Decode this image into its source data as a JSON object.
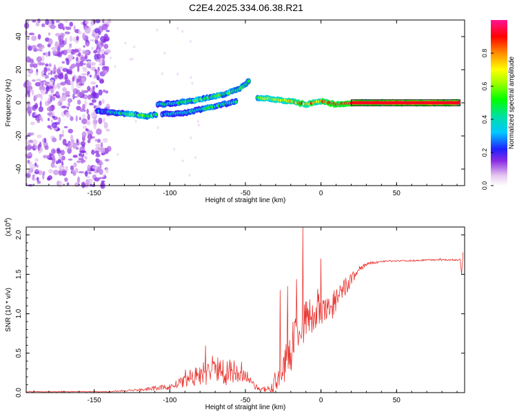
{
  "title": "C2E4.2025.334.06.38.R21",
  "chart_data": [
    {
      "type": "heatmap",
      "xlabel": "Height of straight line (km)",
      "ylabel": "Frequency (Hz)",
      "xlim": [
        -195,
        95
      ],
      "ylim": [
        -50,
        50
      ],
      "xticks": [
        -150,
        -100,
        -50,
        0,
        50
      ],
      "yticks": [
        -40,
        -20,
        0,
        20,
        40
      ],
      "colorbar": {
        "label": "Normalized spectral amplitude",
        "range": [
          0,
          1
        ],
        "ticks": [
          "0.0",
          "0.2",
          "0.4",
          "0.6",
          "0.8"
        ]
      },
      "noise_region_x": [
        -195,
        -140
      ],
      "traces": [
        {
          "x": [
            -148,
            -135,
            -125,
            -115,
            -108
          ],
          "y": [
            -5,
            -6,
            -7,
            -8,
            -7
          ],
          "amp": [
            0.25,
            0.4,
            0.5,
            0.55,
            0.45
          ]
        },
        {
          "x": [
            -108,
            -95,
            -80,
            -65,
            -55,
            -50,
            -47
          ],
          "y": [
            -1,
            0,
            2,
            5,
            8,
            11,
            14
          ],
          "amp": [
            0.35,
            0.45,
            0.5,
            0.5,
            0.55,
            0.5,
            0.45
          ]
        },
        {
          "x": [
            -105,
            -90,
            -75,
            -65,
            -55
          ],
          "y": [
            -7,
            -6,
            -3,
            -1,
            1
          ],
          "amp": [
            0.3,
            0.4,
            0.45,
            0.45,
            0.4
          ]
        },
        {
          "x": [
            -42,
            -30,
            -20,
            -10,
            0,
            10,
            20,
            92
          ],
          "y": [
            3,
            2,
            1,
            -1,
            1,
            -1,
            0,
            0
          ],
          "amp": [
            0.55,
            0.7,
            0.75,
            0.8,
            0.8,
            0.9,
            0.95,
            1.0
          ]
        }
      ]
    },
    {
      "type": "line",
      "xlabel": "Height of straight line (km)",
      "ylabel": "SNR (10 * v/v)",
      "multiplier": "(x10",
      "multiplier_exp": "4",
      "xlim": [
        -195,
        95
      ],
      "ylim": [
        0,
        2.1
      ],
      "xticks": [
        -150,
        -100,
        -50,
        0,
        50
      ],
      "yticks": [
        "0.0",
        "0.5",
        "1.0",
        "1.5",
        "2.0"
      ],
      "line_color": "#e8332e",
      "envelope": {
        "x": [
          -195,
          -140,
          -120,
          -100,
          -90,
          -80,
          -70,
          -60,
          -50,
          -45,
          -40,
          -35,
          -30,
          -25,
          -20,
          -15,
          -10,
          -5,
          0,
          5,
          10,
          15,
          20,
          25,
          30,
          40,
          50,
          60,
          70,
          80,
          92
        ],
        "base": [
          0.01,
          0.01,
          0.03,
          0.06,
          0.12,
          0.18,
          0.22,
          0.22,
          0.15,
          0.08,
          0.03,
          0.03,
          0.08,
          0.2,
          0.45,
          0.7,
          0.85,
          0.9,
          0.95,
          1.0,
          1.1,
          1.25,
          1.4,
          1.55,
          1.62,
          1.66,
          1.67,
          1.67,
          1.68,
          1.68,
          1.68
        ],
        "amp": [
          0.01,
          0.01,
          0.03,
          0.08,
          0.15,
          0.3,
          0.4,
          0.35,
          0.25,
          0.1,
          0.04,
          0.1,
          0.25,
          0.45,
          0.6,
          0.6,
          0.55,
          0.45,
          0.35,
          0.35,
          0.35,
          0.3,
          0.2,
          0.08,
          0.05,
          0.02,
          0.02,
          0.02,
          0.02,
          0.02,
          0.02
        ]
      },
      "spikes": [
        {
          "x": -12,
          "y": 2.1
        },
        {
          "x": -22,
          "y": 1.35
        },
        {
          "x": -27,
          "y": 1.3
        },
        {
          "x": 0,
          "y": 1.7
        }
      ]
    }
  ]
}
